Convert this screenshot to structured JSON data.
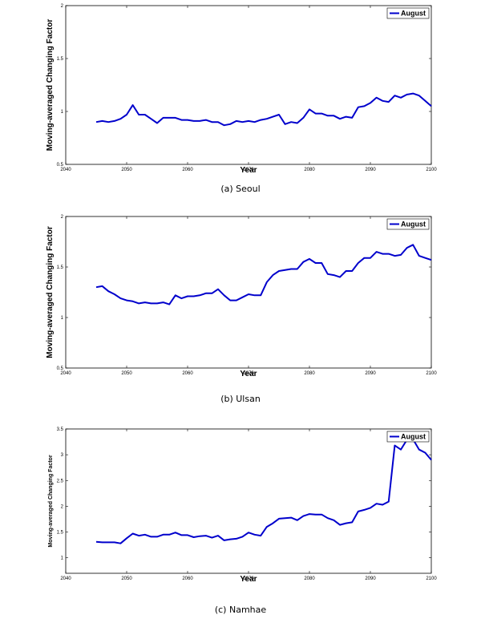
{
  "chart_data": [
    {
      "type": "line",
      "caption": "(a) Seoul",
      "xlabel": "Year",
      "ylabel": "Moving-averaged Changing Factor",
      "xlim": [
        2040,
        2100
      ],
      "ylim": [
        0.5,
        2
      ],
      "xticks": [
        "2040",
        "2050",
        "2060",
        "2070",
        "2080",
        "2090",
        "2100"
      ],
      "yticks": [
        "0.5",
        "1",
        "1.5",
        "2"
      ],
      "legend_position": "top-right",
      "grid": false,
      "series": [
        {
          "name": "August",
          "color": "#0000cc",
          "x": [
            2045,
            2046,
            2047,
            2048,
            2049,
            2050,
            2051,
            2052,
            2053,
            2054,
            2055,
            2056,
            2057,
            2058,
            2059,
            2060,
            2061,
            2062,
            2063,
            2064,
            2065,
            2066,
            2067,
            2068,
            2069,
            2070,
            2071,
            2072,
            2073,
            2074,
            2075,
            2076,
            2077,
            2078,
            2079,
            2080,
            2081,
            2082,
            2083,
            2084,
            2085,
            2086,
            2087,
            2088,
            2089,
            2090,
            2091,
            2092,
            2093,
            2094,
            2095,
            2096,
            2097,
            2098,
            2099,
            2100
          ],
          "y": [
            0.9,
            0.91,
            0.9,
            0.91,
            0.93,
            0.97,
            1.06,
            0.97,
            0.97,
            0.93,
            0.89,
            0.94,
            0.94,
            0.94,
            0.92,
            0.92,
            0.91,
            0.91,
            0.92,
            0.9,
            0.9,
            0.87,
            0.88,
            0.91,
            0.9,
            0.91,
            0.9,
            0.92,
            0.93,
            0.95,
            0.97,
            0.88,
            0.9,
            0.89,
            0.94,
            1.02,
            0.98,
            0.98,
            0.96,
            0.96,
            0.93,
            0.95,
            0.94,
            1.04,
            1.05,
            1.08,
            1.13,
            1.1,
            1.09,
            1.15,
            1.13,
            1.16,
            1.17,
            1.15,
            1.1,
            1.05
          ]
        }
      ]
    },
    {
      "type": "line",
      "caption": "(b) Ulsan",
      "xlabel": "Year",
      "ylabel": "Moving-averaged Changing Factor",
      "xlim": [
        2040,
        2100
      ],
      "ylim": [
        0.5,
        2
      ],
      "xticks": [
        "2040",
        "2050",
        "2060",
        "2070",
        "2080",
        "2090",
        "2100"
      ],
      "yticks": [
        "0.5",
        "1",
        "1.5",
        "2"
      ],
      "legend_position": "top-right",
      "grid": false,
      "series": [
        {
          "name": "August",
          "color": "#0000cc",
          "x": [
            2045,
            2046,
            2047,
            2048,
            2049,
            2050,
            2051,
            2052,
            2053,
            2054,
            2055,
            2056,
            2057,
            2058,
            2059,
            2060,
            2061,
            2062,
            2063,
            2064,
            2065,
            2066,
            2067,
            2068,
            2069,
            2070,
            2071,
            2072,
            2073,
            2074,
            2075,
            2076,
            2077,
            2078,
            2079,
            2080,
            2081,
            2082,
            2083,
            2084,
            2085,
            2086,
            2087,
            2088,
            2089,
            2090,
            2091,
            2092,
            2093,
            2094,
            2095,
            2096,
            2097,
            2098,
            2099,
            2100
          ],
          "y": [
            1.3,
            1.31,
            1.26,
            1.23,
            1.19,
            1.17,
            1.16,
            1.14,
            1.15,
            1.14,
            1.14,
            1.15,
            1.13,
            1.22,
            1.19,
            1.21,
            1.21,
            1.22,
            1.24,
            1.24,
            1.28,
            1.22,
            1.17,
            1.17,
            1.2,
            1.23,
            1.22,
            1.22,
            1.35,
            1.42,
            1.46,
            1.47,
            1.48,
            1.48,
            1.55,
            1.58,
            1.54,
            1.54,
            1.43,
            1.42,
            1.4,
            1.46,
            1.46,
            1.54,
            1.59,
            1.59,
            1.65,
            1.63,
            1.63,
            1.61,
            1.62,
            1.69,
            1.72,
            1.61,
            1.59,
            1.57
          ]
        }
      ]
    },
    {
      "type": "line",
      "caption": "(c) Namhae",
      "xlabel": "Year",
      "ylabel": "Moving-averaged Changing Factor",
      "xlim": [
        2040,
        2100
      ],
      "ylim": [
        0.7,
        3.5
      ],
      "xticks": [
        "2040",
        "2050",
        "2060",
        "2070",
        "2080",
        "2090",
        "2100"
      ],
      "yticks": [
        "1",
        "1.5",
        "2",
        "2.5",
        "3",
        "3.5"
      ],
      "legend_position": "top-right",
      "grid": false,
      "series": [
        {
          "name": "August",
          "color": "#0000cc",
          "x": [
            2045,
            2046,
            2047,
            2048,
            2049,
            2050,
            2051,
            2052,
            2053,
            2054,
            2055,
            2056,
            2057,
            2058,
            2059,
            2060,
            2061,
            2062,
            2063,
            2064,
            2065,
            2066,
            2067,
            2068,
            2069,
            2070,
            2071,
            2072,
            2073,
            2074,
            2075,
            2076,
            2077,
            2078,
            2079,
            2080,
            2081,
            2082,
            2083,
            2084,
            2085,
            2086,
            2087,
            2088,
            2089,
            2090,
            2091,
            2092,
            2093,
            2094,
            2095,
            2096,
            2097,
            2098,
            2099,
            2100
          ],
          "y": [
            1.31,
            1.3,
            1.3,
            1.3,
            1.28,
            1.38,
            1.47,
            1.43,
            1.45,
            1.41,
            1.41,
            1.45,
            1.45,
            1.49,
            1.44,
            1.44,
            1.4,
            1.42,
            1.43,
            1.39,
            1.43,
            1.34,
            1.36,
            1.37,
            1.41,
            1.49,
            1.45,
            1.43,
            1.6,
            1.67,
            1.76,
            1.77,
            1.78,
            1.73,
            1.81,
            1.85,
            1.84,
            1.84,
            1.77,
            1.73,
            1.64,
            1.67,
            1.69,
            1.9,
            1.93,
            1.97,
            2.05,
            2.03,
            2.09,
            3.18,
            3.1,
            3.29,
            3.3,
            3.1,
            3.04,
            2.9
          ]
        }
      ]
    }
  ]
}
